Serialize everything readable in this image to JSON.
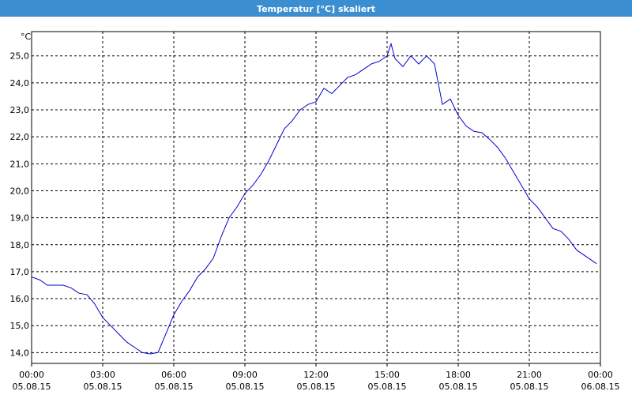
{
  "window": {
    "title": "Temperatur [°C] skaliert"
  },
  "colors": {
    "titlebar": "#3b8fd0",
    "line": "#0000cc",
    "grid": "#000000"
  },
  "chart_data": {
    "type": "line",
    "title": "Temperatur [°C] skaliert",
    "ylabel": "°C",
    "xlabel": "",
    "ylim": [
      13.6,
      25.9
    ],
    "xlim": [
      "05.08.15 00:00",
      "06.08.15 00:00"
    ],
    "grid": true,
    "y_ticks": [
      "14,0",
      "15,0",
      "16,0",
      "17,0",
      "18,0",
      "19,0",
      "20,0",
      "21,0",
      "22,0",
      "23,0",
      "24,0",
      "25,0"
    ],
    "x_ticks": [
      {
        "time": "00:00",
        "date": "05.08.15"
      },
      {
        "time": "03:00",
        "date": "05.08.15"
      },
      {
        "time": "06:00",
        "date": "05.08.15"
      },
      {
        "time": "09:00",
        "date": "05.08.15"
      },
      {
        "time": "12:00",
        "date": "05.08.15"
      },
      {
        "time": "15:00",
        "date": "05.08.15"
      },
      {
        "time": "18:00",
        "date": "05.08.15"
      },
      {
        "time": "21:00",
        "date": "05.08.15"
      },
      {
        "time": "00:00",
        "date": "06.08.15"
      }
    ],
    "series": [
      {
        "x": [
          "00:00",
          "00:20",
          "00:40",
          "01:00",
          "01:20",
          "01:40",
          "02:00",
          "02:20",
          "02:40",
          "03:00",
          "03:20",
          "03:40",
          "04:00",
          "04:20",
          "04:40",
          "05:00",
          "05:20",
          "05:40",
          "06:00",
          "06:20",
          "06:40",
          "07:00",
          "07:20",
          "07:40",
          "08:00",
          "08:20",
          "08:40",
          "09:00",
          "09:20",
          "09:40",
          "10:00",
          "10:20",
          "10:40",
          "11:00",
          "11:20",
          "11:40",
          "12:00",
          "12:20",
          "12:40",
          "13:00",
          "13:20",
          "13:40",
          "14:00",
          "14:20",
          "14:40",
          "15:00",
          "15:10",
          "15:20",
          "15:40",
          "16:00",
          "16:20",
          "16:40",
          "17:00",
          "17:20",
          "17:40",
          "18:00",
          "18:20",
          "18:40",
          "19:00",
          "19:20",
          "19:40",
          "20:00",
          "20:20",
          "20:40",
          "21:00",
          "21:20",
          "21:40",
          "22:00",
          "22:20",
          "22:40",
          "23:00",
          "23:20",
          "23:40",
          "23:50"
        ],
        "values": [
          16.8,
          16.7,
          16.5,
          16.5,
          16.5,
          16.4,
          16.2,
          16.15,
          15.8,
          15.3,
          15.0,
          14.7,
          14.4,
          14.2,
          14.0,
          13.95,
          14.0,
          14.7,
          15.4,
          15.9,
          16.3,
          16.8,
          17.1,
          17.5,
          18.3,
          19.0,
          19.4,
          19.9,
          20.2,
          20.6,
          21.1,
          21.7,
          22.3,
          22.6,
          23.0,
          23.2,
          23.3,
          23.8,
          23.6,
          23.9,
          24.2,
          24.3,
          24.5,
          24.7,
          24.8,
          25.0,
          25.45,
          24.9,
          24.6,
          25.0,
          24.7,
          25.0,
          24.7,
          23.2,
          23.4,
          22.8,
          22.4,
          22.2,
          22.15,
          21.9,
          21.6,
          21.2,
          20.7,
          20.2,
          19.7,
          19.4,
          19.0,
          18.6,
          18.5,
          18.2,
          17.8,
          17.6,
          17.4,
          17.3
        ]
      }
    ]
  }
}
